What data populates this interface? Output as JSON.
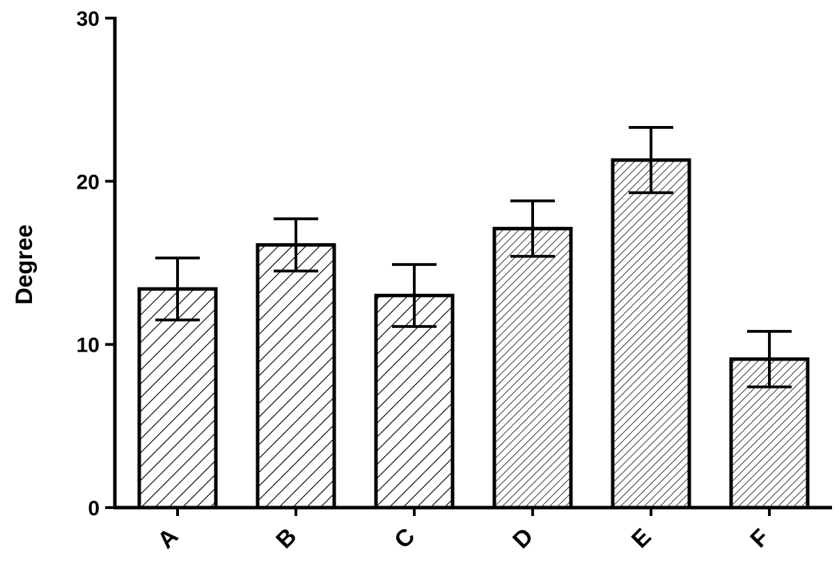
{
  "chart_data": {
    "type": "bar",
    "title": "",
    "xlabel": "",
    "ylabel": "Degree",
    "categories": [
      "A",
      "B",
      "C",
      "D",
      "E",
      "F"
    ],
    "values": [
      13.4,
      16.1,
      13.0,
      17.1,
      21.3,
      9.1
    ],
    "error": [
      1.9,
      1.6,
      1.9,
      1.7,
      2.0,
      1.7
    ],
    "patterns": [
      "wide-hatch",
      "wide-hatch",
      "wide-hatch",
      "fine-hatch",
      "fine-hatch",
      "fine-hatch"
    ],
    "ylim": [
      0,
      30
    ],
    "yticks": [
      0,
      10,
      20,
      30
    ],
    "grid": false,
    "legend": "none",
    "bar_color": "#ffffff",
    "stroke_color": "#000000"
  }
}
